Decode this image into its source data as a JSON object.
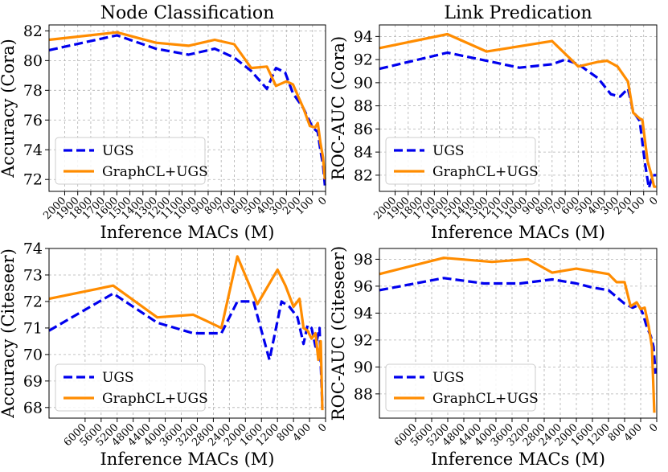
{
  "chart_data": [
    {
      "type": "line",
      "title": "Node Classification",
      "xlabel": "Inference MACs (M)",
      "ylabel": "Accuracy (Cora)",
      "xlim": [
        2120,
        0
      ],
      "ylim": [
        71.2,
        82.4
      ],
      "xticks": [
        2000,
        1900,
        1800,
        1700,
        1600,
        1500,
        1400,
        1300,
        1200,
        1100,
        1000,
        900,
        800,
        700,
        600,
        500,
        400,
        300,
        200,
        100,
        0
      ],
      "yticks": [
        72,
        74,
        76,
        78,
        80,
        82
      ],
      "grid": true,
      "legend": "lower-left",
      "series": [
        {
          "name": "UGS",
          "color": "#0000ee",
          "style": "dashed",
          "x": [
            2120,
            1600,
            1300,
            1050,
            850,
            700,
            570,
            450,
            380,
            310,
            250,
            170,
            100,
            60,
            40,
            20,
            5
          ],
          "y": [
            80.7,
            81.7,
            80.8,
            80.4,
            80.8,
            80.2,
            79.3,
            78.1,
            79.5,
            79.2,
            77.8,
            76.8,
            75.5,
            75.2,
            74.0,
            73.0,
            71.6
          ]
        },
        {
          "name": "GraphCL+UGS",
          "color": "#ff8c00",
          "style": "solid",
          "x": [
            2120,
            1600,
            1300,
            1050,
            850,
            700,
            570,
            450,
            380,
            300,
            250,
            170,
            120,
            80,
            60,
            40,
            20,
            5
          ],
          "y": [
            81.4,
            81.9,
            81.2,
            81.0,
            81.4,
            81.1,
            79.5,
            79.6,
            78.3,
            78.6,
            78.4,
            76.8,
            75.6,
            75.5,
            75.8,
            74.5,
            73.5,
            72.0
          ]
        }
      ]
    },
    {
      "type": "line",
      "title": "Link Predication",
      "xlabel": "Inference MACs (M)",
      "ylabel": "ROC-AUC (Cora)",
      "xlim": [
        2120,
        0
      ],
      "ylim": [
        80.6,
        95.0
      ],
      "xticks": [
        2000,
        1900,
        1800,
        1700,
        1600,
        1500,
        1400,
        1300,
        1200,
        1100,
        1000,
        900,
        800,
        700,
        600,
        500,
        400,
        300,
        200,
        100,
        0
      ],
      "yticks": [
        82,
        84,
        86,
        88,
        90,
        92,
        94
      ],
      "grid": true,
      "legend": "lower-left",
      "series": [
        {
          "name": "UGS",
          "color": "#0000ee",
          "style": "dashed",
          "x": [
            2120,
            1600,
            1300,
            1050,
            800,
            700,
            600,
            450,
            350,
            280,
            220,
            180,
            130,
            90,
            60,
            30,
            5
          ],
          "y": [
            91.2,
            92.6,
            91.9,
            91.3,
            91.6,
            92.0,
            91.6,
            90.4,
            89.0,
            88.8,
            89.5,
            87.5,
            86.7,
            83.0,
            80.9,
            82.0,
            82.0
          ]
        },
        {
          "name": "GraphCL+UGS",
          "color": "#ff8c00",
          "style": "solid",
          "x": [
            2120,
            1600,
            1300,
            800,
            600,
            450,
            380,
            300,
            220,
            180,
            130,
            110,
            70,
            40,
            20,
            5
          ],
          "y": [
            93.0,
            94.2,
            92.7,
            93.6,
            91.4,
            91.8,
            91.9,
            91.4,
            90.1,
            87.4,
            86.9,
            86.8,
            83.2,
            82.0,
            81.0,
            81.0
          ]
        }
      ]
    },
    {
      "type": "line",
      "title": "",
      "xlabel": "Inference MACs (M)",
      "ylabel": "Accuracy (Citeseer)",
      "xlim": [
        6900,
        0
      ],
      "ylim": [
        67.6,
        74.0
      ],
      "xticks": [
        6000,
        5600,
        5200,
        4800,
        4400,
        4000,
        3600,
        3200,
        2800,
        2400,
        2000,
        1600,
        1200,
        800,
        400,
        0
      ],
      "yticks": [
        68,
        69,
        70,
        71,
        72,
        73,
        74
      ],
      "grid": true,
      "legend": "lower-left",
      "series": [
        {
          "name": "UGS",
          "color": "#0000ee",
          "style": "dashed",
          "x": [
            6900,
            5300,
            4200,
            3300,
            2600,
            2200,
            1800,
            1400,
            1100,
            900,
            700,
            550,
            450,
            350,
            250,
            150,
            80
          ],
          "y": [
            70.9,
            72.3,
            71.2,
            70.8,
            70.8,
            72.0,
            72.0,
            69.8,
            72.0,
            71.8,
            71.4,
            70.4,
            71.1,
            71.0,
            70.3,
            71.0,
            68.0
          ]
        },
        {
          "name": "GraphCL+UGS",
          "color": "#ff8c00",
          "style": "solid",
          "x": [
            6900,
            5300,
            4200,
            3300,
            2600,
            2200,
            1700,
            1200,
            1000,
            800,
            650,
            550,
            450,
            350,
            250,
            180,
            120,
            80
          ],
          "y": [
            72.1,
            72.6,
            71.4,
            71.5,
            71.0,
            73.7,
            71.9,
            73.2,
            72.6,
            71.8,
            72.1,
            71.0,
            70.9,
            70.6,
            70.8,
            69.8,
            70.5,
            67.9
          ]
        }
      ]
    },
    {
      "type": "line",
      "title": "",
      "xlabel": "Inference MACs (M)",
      "ylabel": "ROC-AUC (Citeseer)",
      "xlim": [
        6900,
        0
      ],
      "ylim": [
        86.2,
        98.8
      ],
      "xticks": [
        6000,
        5600,
        5200,
        4800,
        4400,
        4000,
        3600,
        3200,
        2800,
        2400,
        2000,
        1600,
        1200,
        800,
        400,
        0
      ],
      "yticks": [
        88,
        90,
        92,
        94,
        96,
        98
      ],
      "grid": true,
      "legend": "lower-left",
      "series": [
        {
          "name": "UGS",
          "color": "#0000ee",
          "style": "dashed",
          "x": [
            6900,
            5300,
            4300,
            3400,
            2600,
            2000,
            1600,
            1200,
            800,
            600,
            450,
            350,
            250,
            150,
            80,
            30
          ],
          "y": [
            95.7,
            96.6,
            96.2,
            96.2,
            96.5,
            96.2,
            95.9,
            95.7,
            94.7,
            94.4,
            94.6,
            94.0,
            93.0,
            92.3,
            91.5,
            89.5
          ]
        },
        {
          "name": "GraphCL+UGS",
          "color": "#ff8c00",
          "style": "solid",
          "x": [
            6900,
            5300,
            4100,
            3200,
            2600,
            2000,
            1600,
            1200,
            1000,
            800,
            650,
            500,
            400,
            300,
            200,
            120,
            60
          ],
          "y": [
            96.9,
            98.1,
            97.8,
            98.0,
            97.0,
            97.3,
            97.1,
            96.9,
            96.3,
            96.3,
            94.5,
            94.8,
            94.3,
            94.4,
            93.0,
            91.5,
            86.6
          ]
        }
      ]
    }
  ]
}
